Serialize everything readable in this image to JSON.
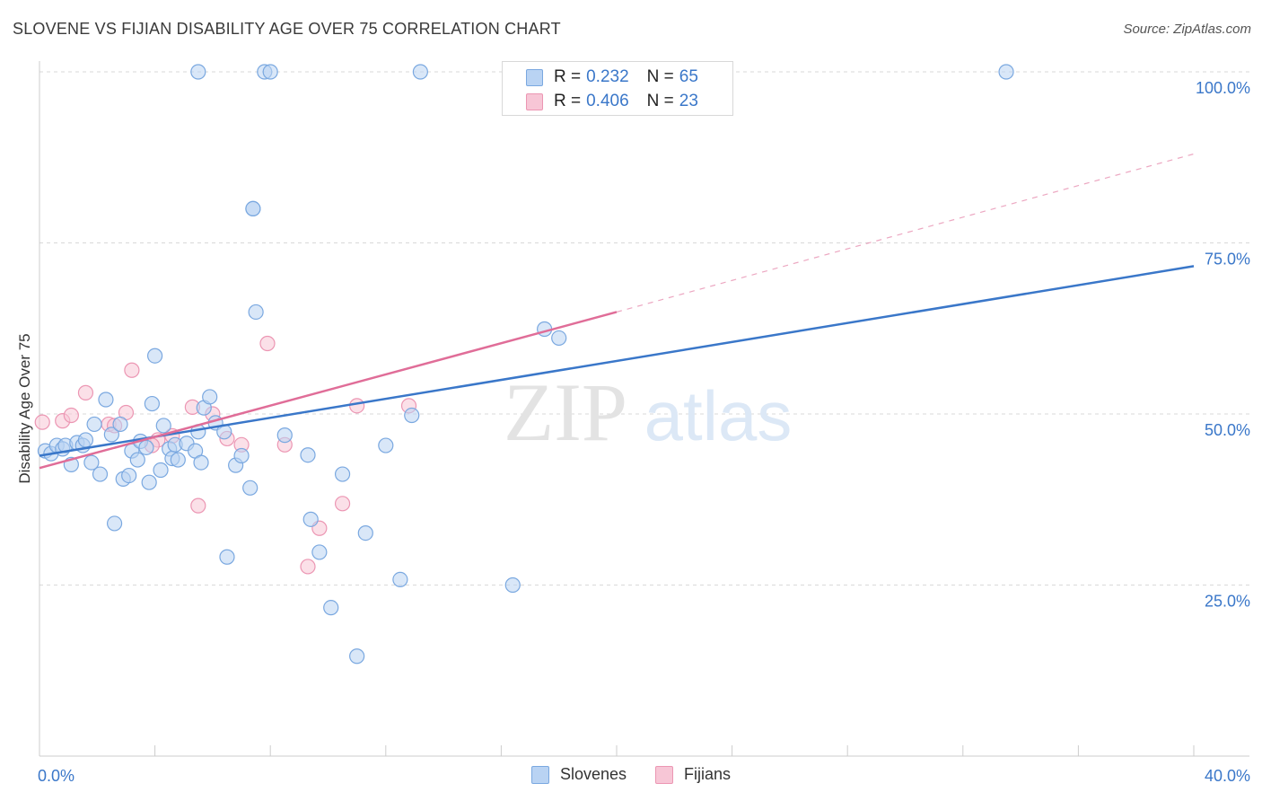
{
  "header": {
    "title": "SLOVENE VS FIJIAN DISABILITY AGE OVER 75 CORRELATION CHART",
    "source": "Source: ZipAtlas.com"
  },
  "legend": {
    "rows": [
      {
        "r_label": "R =",
        "r_value": "0.232",
        "n_label": "N =",
        "n_value": "65"
      },
      {
        "r_label": "R =",
        "r_value": "0.406",
        "n_label": "N =",
        "n_value": "23"
      }
    ]
  },
  "bottom_legend": {
    "slovenes": "Slovenes",
    "fijians": "Fijians"
  },
  "colors": {
    "blue_fill": "#b9d3f3",
    "blue_stroke": "#7aa8e0",
    "blue_line": "#3a77c9",
    "pink_fill": "#f7c6d6",
    "pink_stroke": "#ec96b3",
    "pink_line": "#e06d98",
    "axis_text": "#3a77c9",
    "grid": "#d9d9d9"
  },
  "chart_data": {
    "type": "scatter",
    "title": "SLOVENE VS FIJIAN DISABILITY AGE OVER 75 CORRELATION CHART",
    "xlabel": "",
    "ylabel": "Disability Age Over 75",
    "xlim": [
      0,
      40
    ],
    "ylim": [
      0,
      100
    ],
    "x_tick_labels": [
      "0.0%",
      "40.0%"
    ],
    "y_ticks": [
      25,
      50,
      75,
      100
    ],
    "y_tick_labels": [
      "25.0%",
      "50.0%",
      "75.0%",
      "100.0%"
    ],
    "watermark": [
      "ZIP",
      "atlas"
    ],
    "series": [
      {
        "name": "Slovenes",
        "color": "blue",
        "trend": {
          "x0": 0,
          "y0": 43.9,
          "x1": 40,
          "y1": 71.6,
          "dash_to": null
        },
        "points": [
          [
            0.2,
            44.6
          ],
          [
            0.4,
            44.2
          ],
          [
            0.6,
            45.4
          ],
          [
            0.8,
            44.9
          ],
          [
            0.9,
            45.4
          ],
          [
            1.1,
            42.6
          ],
          [
            1.3,
            45.8
          ],
          [
            1.5,
            45.4
          ],
          [
            1.6,
            46.2
          ],
          [
            1.8,
            42.9
          ],
          [
            1.9,
            48.5
          ],
          [
            2.1,
            41.2
          ],
          [
            2.3,
            52.1
          ],
          [
            2.5,
            47.0
          ],
          [
            2.6,
            34.0
          ],
          [
            2.8,
            48.5
          ],
          [
            2.9,
            40.5
          ],
          [
            3.1,
            41.0
          ],
          [
            3.2,
            44.6
          ],
          [
            3.4,
            43.3
          ],
          [
            3.5,
            46.0
          ],
          [
            3.7,
            45.1
          ],
          [
            3.8,
            40.0
          ],
          [
            3.9,
            51.5
          ],
          [
            4.0,
            58.5
          ],
          [
            4.2,
            41.8
          ],
          [
            4.3,
            48.3
          ],
          [
            4.5,
            44.9
          ],
          [
            4.6,
            43.5
          ],
          [
            4.7,
            45.5
          ],
          [
            4.8,
            43.3
          ],
          [
            5.1,
            45.7
          ],
          [
            5.4,
            44.6
          ],
          [
            5.5,
            47.4
          ],
          [
            5.6,
            42.9
          ],
          [
            5.7,
            50.9
          ],
          [
            5.9,
            52.5
          ],
          [
            6.1,
            48.7
          ],
          [
            6.4,
            47.4
          ],
          [
            6.5,
            29.1
          ],
          [
            6.8,
            42.5
          ],
          [
            7.0,
            43.9
          ],
          [
            7.3,
            39.2
          ],
          [
            7.5,
            64.9
          ],
          [
            8.5,
            46.9
          ],
          [
            9.3,
            44.0
          ],
          [
            9.4,
            34.6
          ],
          [
            9.7,
            29.8
          ],
          [
            10.1,
            21.7
          ],
          [
            10.5,
            41.2
          ],
          [
            11.0,
            14.6
          ],
          [
            11.3,
            32.6
          ],
          [
            12.0,
            45.4
          ],
          [
            12.5,
            25.8
          ],
          [
            12.9,
            49.8
          ],
          [
            16.4,
            25.0
          ],
          [
            17.5,
            62.4
          ],
          [
            18.0,
            61.1
          ],
          [
            5.5,
            100.0
          ],
          [
            7.8,
            100.0
          ],
          [
            8.0,
            100.0
          ],
          [
            13.2,
            100.0
          ],
          [
            33.5,
            100.0
          ],
          [
            7.4,
            80.0
          ],
          [
            7.4,
            80.0
          ]
        ]
      },
      {
        "name": "Fijians",
        "color": "pink",
        "trend": {
          "x0": 0,
          "y0": 42.1,
          "x1": 20,
          "y1": 64.9,
          "dash_to": [
            40,
            88.0
          ]
        },
        "points": [
          [
            0.1,
            48.8
          ],
          [
            0.8,
            49.0
          ],
          [
            1.1,
            49.8
          ],
          [
            1.6,
            53.1
          ],
          [
            2.4,
            48.5
          ],
          [
            2.6,
            48.3
          ],
          [
            3.0,
            50.2
          ],
          [
            3.2,
            56.4
          ],
          [
            4.1,
            46.2
          ],
          [
            4.6,
            46.8
          ],
          [
            5.3,
            51.0
          ],
          [
            5.5,
            36.6
          ],
          [
            6.0,
            50.0
          ],
          [
            6.5,
            46.4
          ],
          [
            7.0,
            45.5
          ],
          [
            7.9,
            60.3
          ],
          [
            8.5,
            45.5
          ],
          [
            9.3,
            27.7
          ],
          [
            9.7,
            33.3
          ],
          [
            10.5,
            36.9
          ],
          [
            11.0,
            51.2
          ],
          [
            12.8,
            51.2
          ],
          [
            3.9,
            45.4
          ]
        ]
      }
    ]
  }
}
